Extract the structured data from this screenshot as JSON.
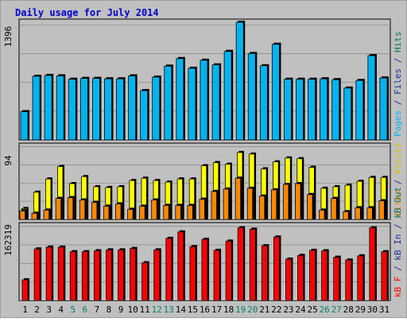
{
  "chart_data": {
    "type": "bar",
    "title": "Daily usage for July 2014",
    "categories": [
      "1",
      "2",
      "3",
      "4",
      "5",
      "6",
      "7",
      "8",
      "9",
      "10",
      "11",
      "12",
      "13",
      "14",
      "15",
      "16",
      "17",
      "18",
      "19",
      "20",
      "21",
      "22",
      "23",
      "24",
      "25",
      "26",
      "27",
      "28",
      "29",
      "30",
      "31"
    ],
    "weekend_days": [
      "5",
      "6",
      "12",
      "13",
      "19",
      "20",
      "26",
      "27"
    ],
    "panels": [
      {
        "id": "top",
        "max_label": "1396",
        "ylim": [
          0,
          1396
        ],
        "series": [
          {
            "name": "Pages",
            "color": "#00b4f0",
            "values": [
              335,
              755,
              765,
              760,
              720,
              730,
              730,
              725,
              725,
              760,
              585,
              745,
              875,
              965,
              850,
              945,
              890,
              1050,
              1396,
              1025,
              880,
              1135,
              720,
              720,
              720,
              725,
              715,
              615,
              705,
              1000,
              735
            ]
          },
          {
            "name": "Files",
            "color": "#1e2e96",
            "values": [
              0,
              0,
              0,
              0,
              0,
              0,
              0,
              0,
              0,
              0,
              0,
              0,
              0,
              0,
              0,
              0,
              0,
              0,
              0,
              0,
              0,
              0,
              0,
              0,
              0,
              0,
              0,
              0,
              0,
              0,
              0
            ]
          },
          {
            "name": "Hits",
            "color": "#0a7060",
            "values": [
              0,
              0,
              0,
              0,
              0,
              0,
              0,
              0,
              0,
              0,
              0,
              0,
              0,
              0,
              0,
              0,
              0,
              0,
              0,
              0,
              0,
              0,
              0,
              0,
              0,
              0,
              0,
              0,
              0,
              0,
              0
            ]
          }
        ]
      },
      {
        "id": "middle",
        "max_label": "94",
        "ylim": [
          0,
          94
        ],
        "series": [
          {
            "name": "Visits",
            "color": "#ffff00",
            "values": [
              14,
              35,
              52,
              68,
              46,
              55,
              42,
              41,
              42,
              50,
              53,
              50,
              48,
              52,
              52,
              69,
              73,
              71,
              86,
              84,
              65,
              74,
              79,
              78,
              67,
              40,
              42,
              44,
              49,
              54,
              54
            ]
          },
          {
            "name": "Sites",
            "color": "#ff8800",
            "values": [
              11,
              8,
              12,
              27,
              28,
              25,
              22,
              17,
              20,
              13,
              17,
              25,
              18,
              18,
              18,
              26,
              36,
              39,
              53,
              40,
              30,
              38,
              45,
              46,
              32,
              12,
              27,
              10,
              15,
              15,
              24
            ]
          }
        ]
      },
      {
        "id": "bottom",
        "max_label": "162319",
        "ylim": [
          0,
          162319
        ],
        "series": [
          {
            "name": "kB F",
            "color": "#ff0000",
            "values": [
              45000,
              112000,
              116000,
              116000,
              106000,
              106000,
              108000,
              110000,
              110000,
              113000,
              82000,
              110000,
              135000,
              149000,
              117000,
              133000,
              109000,
              129000,
              158000,
              155000,
              119000,
              138000,
              90000,
              98000,
              109000,
              108000,
              94000,
              88000,
              97000,
              158000,
              106000
            ]
          },
          {
            "name": "kB In",
            "color": "#d02060",
            "values": [
              0,
              0,
              0,
              0,
              0,
              0,
              0,
              0,
              0,
              0,
              0,
              0,
              0,
              0,
              0,
              0,
              0,
              0,
              0,
              0,
              0,
              0,
              0,
              0,
              0,
              0,
              0,
              0,
              0,
              0,
              0
            ]
          },
          {
            "name": "kB Out",
            "color": "#0a7060",
            "values": [
              0,
              0,
              0,
              0,
              0,
              0,
              0,
              0,
              0,
              0,
              0,
              0,
              0,
              0,
              0,
              0,
              0,
              0,
              0,
              0,
              0,
              0,
              0,
              0,
              0,
              0,
              0,
              0,
              0,
              0,
              0
            ]
          }
        ]
      }
    ]
  },
  "legend": [
    {
      "panel": "top",
      "items": [
        {
          "label": "Pages",
          "color": "#00b4f0"
        },
        {
          "label": " / ",
          "color": "#1e2e96"
        },
        {
          "label": "Files",
          "color": "#1e2e96"
        },
        {
          "label": " / ",
          "color": "#1e2e96"
        },
        {
          "label": "Hits",
          "color": "#0a7060"
        }
      ]
    },
    {
      "panel": "middle",
      "items": [
        {
          "label": "Sites",
          "color": "#ff8800"
        },
        {
          "label": " / ",
          "color": "#1e2e96"
        },
        {
          "label": "Visits",
          "color": "#e0c000"
        }
      ]
    },
    {
      "panel": "bottom",
      "items": [
        {
          "label": "kB F",
          "color": "#ff0000"
        },
        {
          "label": " / ",
          "color": "#1e2e96"
        },
        {
          "label": "kB In",
          "color": "#1e2e96"
        },
        {
          "label": " / ",
          "color": "#1e2e96"
        },
        {
          "label": "kB Out",
          "color": "#0a7060"
        }
      ]
    }
  ],
  "colors": {
    "background": "#c0c0c0",
    "plot_background": "#c0c0c0",
    "title": "#0000cc",
    "axis_label": "#000000",
    "day_label": "#000000",
    "weekend_label": "#00806a"
  }
}
